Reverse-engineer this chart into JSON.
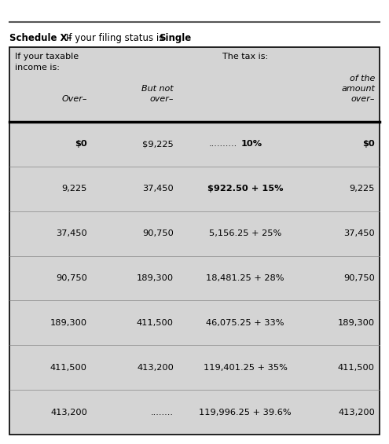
{
  "title_part1": "Schedule X–",
  "title_part2": "If your filing status is ",
  "title_part3": "Single",
  "header_col1_line1": "If your taxable",
  "header_col1_line2": "income is:",
  "header_col3": "The tax is:",
  "subheader_col1": "Over–",
  "subheader_col2_line1": "But not",
  "subheader_col2_line2": "over–",
  "subheader_col4_line1": "of the",
  "subheader_col4_line2": "amount",
  "subheader_col4_line3": "over–",
  "rows": [
    [
      "$0",
      "$9,225",
      ".......... 10%",
      "$0"
    ],
    [
      "9,225",
      "37,450",
      "$922.50 + 15%",
      "9,225"
    ],
    [
      "37,450",
      "90,750",
      "5,156.25 + 25%",
      "37,450"
    ],
    [
      "90,750",
      "189,300",
      "18,481.25 + 28%",
      "90,750"
    ],
    [
      "189,300",
      "411,500",
      "46,075.25 + 33%",
      "189,300"
    ],
    [
      "411,500",
      "413,200",
      "119,401.25 + 35%",
      "411,500"
    ],
    [
      "413,200",
      "........",
      "119,996.25 + 39.6%",
      "413,200"
    ]
  ],
  "row0_col0_bold": true,
  "row0_col3_bold": true,
  "row1_col2_bold": true,
  "bg_color": "#d4d4d4",
  "white": "#ffffff",
  "border_color": "#000000",
  "text_color": "#000000",
  "title_fontsize": 8.5,
  "header_fontsize": 8.0,
  "data_fontsize": 8.2,
  "fig_width": 4.95,
  "fig_height": 5.65,
  "dpi": 100
}
